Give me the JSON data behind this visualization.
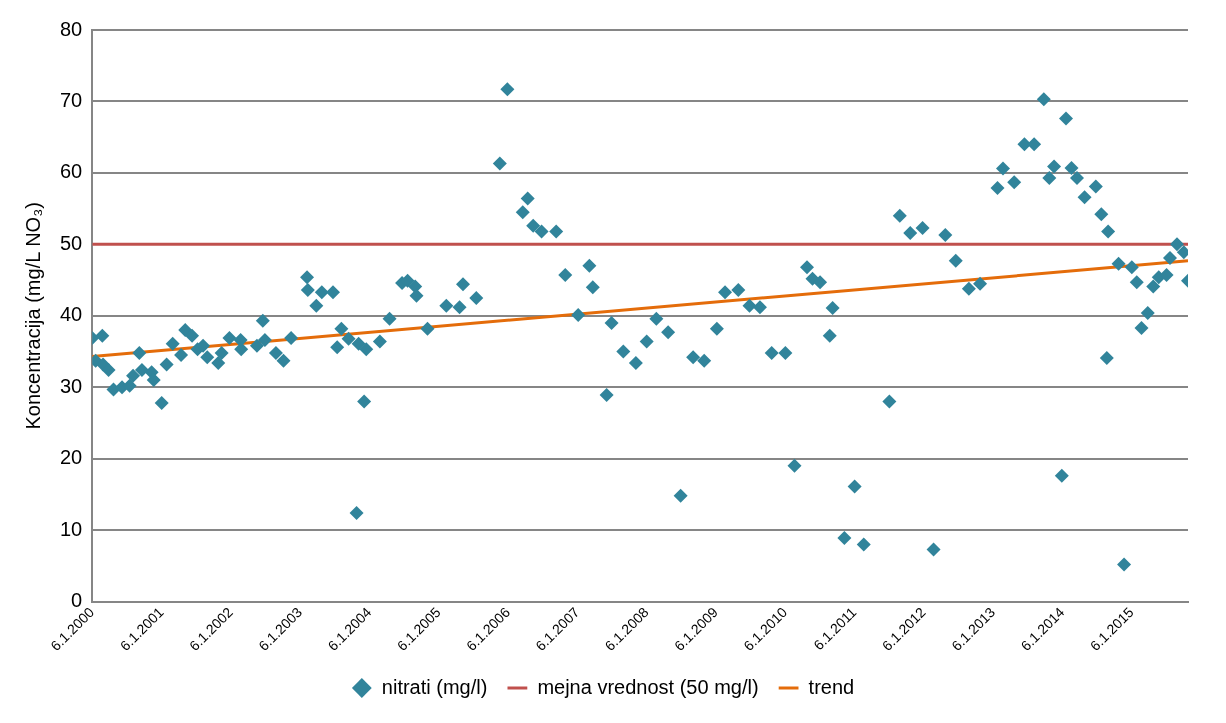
{
  "chart_data": {
    "type": "scatter",
    "ylabel": "Koncentracija (mg/L NO₃)",
    "xlim": [
      "2000-01-06",
      "2015-10-29"
    ],
    "ylim": [
      0,
      80
    ],
    "yticks": [
      0,
      10,
      20,
      30,
      40,
      50,
      60,
      70,
      80
    ],
    "xticks": [
      {
        "value": "2000-01-06",
        "label": "6.1.2000"
      },
      {
        "value": "2001-01-06",
        "label": "6.1.2001"
      },
      {
        "value": "2002-01-06",
        "label": "6.1.2002"
      },
      {
        "value": "2003-01-06",
        "label": "6.1.2003"
      },
      {
        "value": "2004-01-06",
        "label": "6.1.2004"
      },
      {
        "value": "2005-01-06",
        "label": "6.1.2005"
      },
      {
        "value": "2006-01-06",
        "label": "6.1.2006"
      },
      {
        "value": "2007-01-06",
        "label": "6.1.2007"
      },
      {
        "value": "2008-01-06",
        "label": "6.1.2008"
      },
      {
        "value": "2009-01-06",
        "label": "6.1.2009"
      },
      {
        "value": "2010-01-06",
        "label": "6.1.2010"
      },
      {
        "value": "2011-01-06",
        "label": "6.1.2011"
      },
      {
        "value": "2012-01-06",
        "label": "6.1.2012"
      },
      {
        "value": "2013-01-06",
        "label": "6.1.2013"
      },
      {
        "value": "2014-01-06",
        "label": "6.1.2014"
      },
      {
        "value": "2015-01-06",
        "label": "6.1.2015"
      }
    ],
    "grid": "y",
    "legend": "bottom",
    "line_style": "solid",
    "series": [
      {
        "name": "nitrati (mg/l)",
        "marker": "diamond",
        "color": "#31849b",
        "x": [
          "2000-01-06",
          "2000-01-24",
          "2000-02-28",
          "2000-03-03",
          "2000-04-01",
          "2000-04-27",
          "2000-06-11",
          "2000-07-21",
          "2000-08-08",
          "2000-09-10",
          "2000-09-24",
          "2000-11-14",
          "2000-11-25",
          "2001-01-06",
          "2001-02-01",
          "2001-03-05",
          "2001-04-18",
          "2001-05-10",
          "2001-06-15",
          "2001-07-14",
          "2001-08-12",
          "2001-09-03",
          "2001-10-31",
          "2001-11-18",
          "2001-12-29",
          "2002-02-26",
          "2002-03-01",
          "2002-05-23",
          "2002-06-23",
          "2002-07-04",
          "2002-08-31",
          "2002-10-10",
          "2002-11-19",
          "2003-02-11",
          "2003-02-15",
          "2003-04-01",
          "2003-04-30",
          "2003-06-28",
          "2003-07-20",
          "2003-08-11",
          "2003-09-18",
          "2003-10-30",
          "2003-11-10",
          "2003-12-09",
          "2003-12-20",
          "2004-03-01",
          "2004-04-21",
          "2004-06-26",
          "2004-07-25",
          "2004-09-03",
          "2004-09-10",
          "2004-11-07",
          "2005-02-14",
          "2005-04-25",
          "2005-05-13",
          "2005-07-22",
          "2005-11-23",
          "2006-01-02",
          "2006-03-24",
          "2006-04-19",
          "2006-05-18",
          "2006-07-01",
          "2006-09-16",
          "2006-11-03",
          "2007-01-10",
          "2007-03-10",
          "2007-03-28",
          "2007-06-09",
          "2007-07-05",
          "2007-09-05",
          "2007-11-10",
          "2008-01-06",
          "2008-02-26",
          "2008-04-28",
          "2008-07-03",
          "2008-09-07",
          "2008-11-04",
          "2009-01-10",
          "2009-02-22",
          "2009-05-03",
          "2009-07-01",
          "2009-08-25",
          "2009-10-26",
          "2010-01-06",
          "2010-02-23",
          "2010-04-30",
          "2010-05-29",
          "2010-07-08",
          "2010-08-28",
          "2010-09-12",
          "2010-11-13",
          "2011-01-06",
          "2011-02-23",
          "2011-07-08",
          "2011-09-01",
          "2011-10-26",
          "2011-12-30",
          "2012-02-26",
          "2012-04-28",
          "2012-06-22",
          "2012-08-30",
          "2012-10-28",
          "2013-01-28",
          "2013-02-26",
          "2013-04-26",
          "2013-06-19",
          "2013-08-09",
          "2013-09-29",
          "2013-10-28",
          "2013-11-22",
          "2014-01-02",
          "2014-01-24",
          "2014-02-22",
          "2014-03-23",
          "2014-05-02",
          "2014-06-30",
          "2014-07-29",
          "2014-08-27",
          "2014-09-03",
          "2014-10-28",
          "2014-11-26",
          "2015-01-06",
          "2015-02-01",
          "2015-02-26",
          "2015-03-31",
          "2015-04-29",
          "2015-05-28",
          "2015-07-08",
          "2015-07-26",
          "2015-09-01",
          "2015-10-07",
          "2015-10-29"
        ],
        "values": [
          36.9,
          33.7,
          37.2,
          33.2,
          32.4,
          29.7,
          30.0,
          30.2,
          31.6,
          34.8,
          32.4,
          32.1,
          31.0,
          27.8,
          33.2,
          36.1,
          34.5,
          38.0,
          37.2,
          35.3,
          35.8,
          34.2,
          33.4,
          34.8,
          36.9,
          36.6,
          35.3,
          35.8,
          39.3,
          36.6,
          34.8,
          33.7,
          36.9,
          45.4,
          43.6,
          41.4,
          43.3,
          43.3,
          35.6,
          38.2,
          36.8,
          12.4,
          36.1,
          28.0,
          35.3,
          36.4,
          39.6,
          44.6,
          44.9,
          44.1,
          42.8,
          38.2,
          41.4,
          41.2,
          44.4,
          42.5,
          61.3,
          71.7,
          54.5,
          56.4,
          52.6,
          51.8,
          51.8,
          45.7,
          40.1,
          47.0,
          44.0,
          28.9,
          39.0,
          35.0,
          33.4,
          36.4,
          39.6,
          37.7,
          14.8,
          34.2,
          33.7,
          38.2,
          43.3,
          43.6,
          41.4,
          41.2,
          34.8,
          34.8,
          19.0,
          46.8,
          45.2,
          44.7,
          37.2,
          41.1,
          8.9,
          16.1,
          8.0,
          28.0,
          54.0,
          51.6,
          52.3,
          7.3,
          51.3,
          47.7,
          43.8,
          44.5,
          57.9,
          60.6,
          58.7,
          64.0,
          64.0,
          70.3,
          59.3,
          60.9,
          17.6,
          67.6,
          60.7,
          59.3,
          56.6,
          58.1,
          54.2,
          34.1,
          51.8,
          47.3,
          5.2,
          46.8,
          44.7,
          38.3,
          40.4,
          44.1,
          45.4,
          45.7,
          48.1,
          50.0,
          48.9,
          44.9
        ]
      },
      {
        "name": "mejna vrednost (50 mg/l)",
        "type": "line",
        "color": "#c0504d",
        "marker": "none",
        "x": [
          "2000-01-06",
          "2015-10-29"
        ],
        "values": [
          50,
          50
        ]
      },
      {
        "name": "trend",
        "type": "line",
        "color": "#e46c0a",
        "marker": "none",
        "x": [
          "2000-01-06",
          "2015-10-29"
        ],
        "values": [
          34.3,
          47.7
        ]
      }
    ]
  }
}
